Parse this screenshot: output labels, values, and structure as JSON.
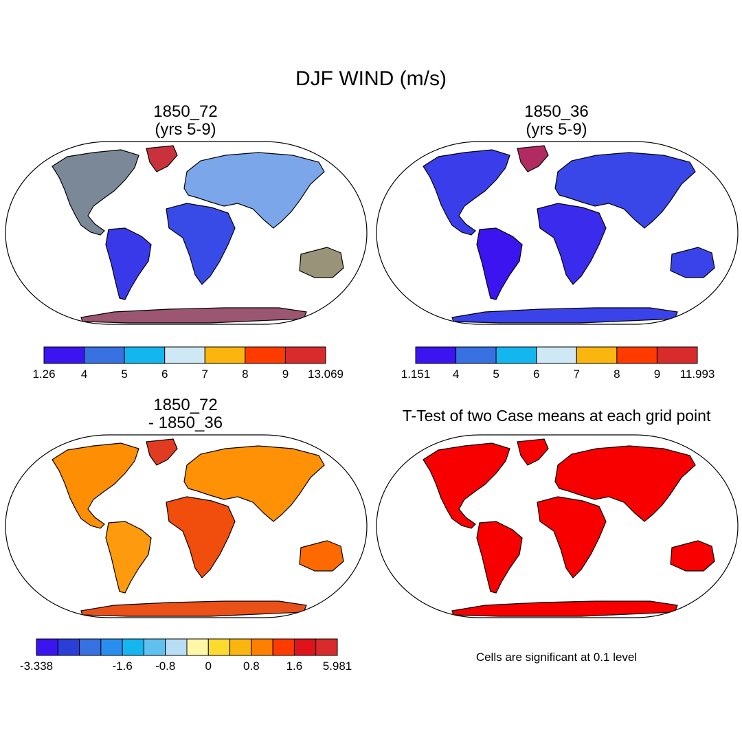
{
  "title": "DJF WIND (m/s)",
  "panels": [
    {
      "id": "case1",
      "title_lines": [
        "1850_72",
        "(yrs 5-9)"
      ],
      "colorbar": {
        "colors": [
          "#3c14f0",
          "#3771e2",
          "#14b6f0",
          "#cfe8f5",
          "#fbb50f",
          "#ff3b00",
          "#d92b2b"
        ],
        "labels": [
          "1.26",
          "4",
          "5",
          "6",
          "7",
          "8",
          "9",
          "13.069"
        ]
      }
    },
    {
      "id": "case2",
      "title_lines": [
        "1850_36",
        "(yrs 5-9)"
      ],
      "colorbar": {
        "colors": [
          "#3c14f0",
          "#3771e2",
          "#14b6f0",
          "#cfe8f5",
          "#fbb50f",
          "#ff3b00",
          "#d92b2b"
        ],
        "labels": [
          "1.151",
          "4",
          "5",
          "6",
          "7",
          "8",
          "9",
          "11.993"
        ]
      }
    },
    {
      "id": "diff",
      "title_lines": [
        "1850_72",
        "- 1850_36"
      ],
      "colorbar": {
        "colors": [
          "#3c14f0",
          "#2a3ed8",
          "#3771e2",
          "#2a8ef0",
          "#14b6f0",
          "#60c0f0",
          "#b8def5",
          "#fff7a8",
          "#fddb2e",
          "#fbb50f",
          "#ff7f00",
          "#ff3b00",
          "#e0121a",
          "#d92b2b"
        ],
        "labels": [
          "-3.338",
          "-1.6",
          "-0.8",
          "0",
          "0.8",
          "1.6",
          "5.981"
        ]
      }
    },
    {
      "id": "ttest",
      "title_lines": [
        "T-Test of two Case means at each grid point"
      ],
      "note": "Cells are significant at 0.1 level",
      "fill": "#f80000"
    }
  ]
}
